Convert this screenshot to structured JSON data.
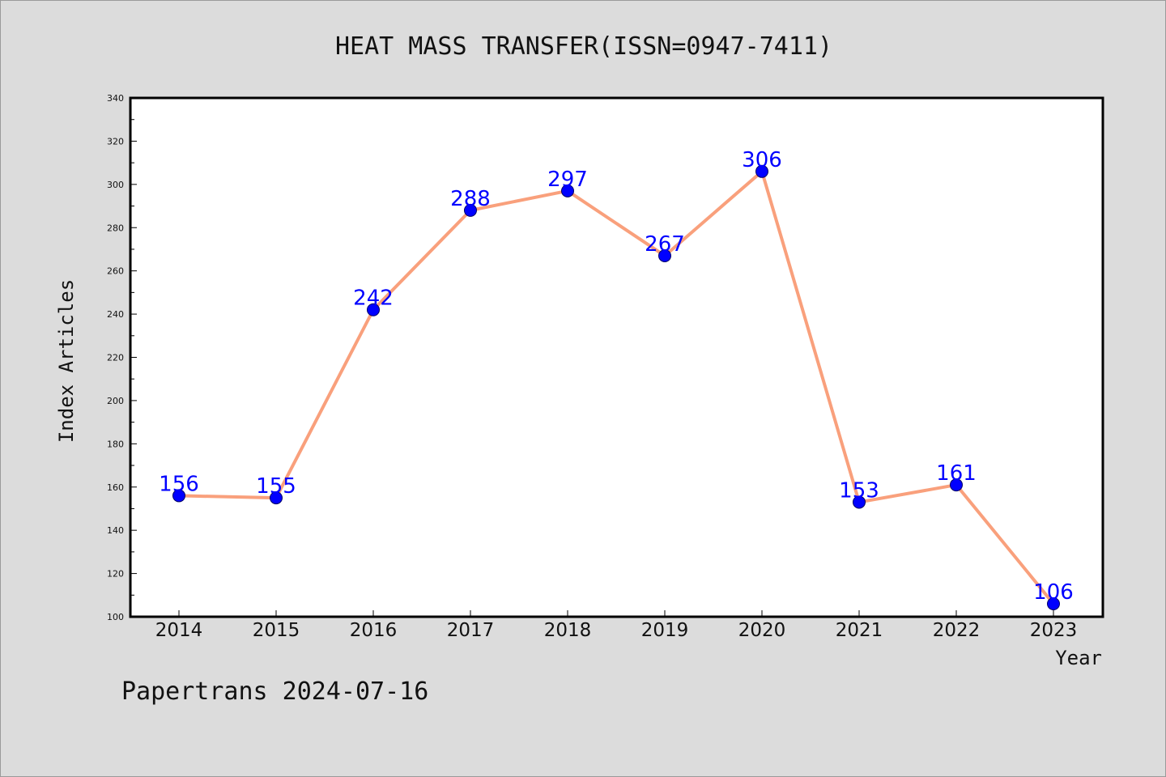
{
  "chart_data": {
    "type": "line",
    "title": "HEAT MASS TRANSFER(ISSN=0947-7411)",
    "xlabel": "Year",
    "ylabel": "Index Articles",
    "x": [
      "2014",
      "2015",
      "2016",
      "2017",
      "2018",
      "2019",
      "2020",
      "2021",
      "2022",
      "2023"
    ],
    "series": [
      {
        "values": [
          156,
          155,
          242,
          288,
          297,
          267,
          306,
          153,
          161,
          106
        ]
      }
    ],
    "data_labels": [
      "156",
      "155",
      "242",
      "288",
      "297",
      "267",
      "306",
      "153",
      "161",
      "106"
    ],
    "ylim": [
      100,
      340
    ],
    "y_ticks": [
      "100",
      "120",
      "140",
      "160",
      "180",
      "200",
      "220",
      "240",
      "260",
      "280",
      "300",
      "320",
      "340"
    ],
    "grid": false,
    "legend": "none",
    "colors": {
      "line": "#f9a07c",
      "marker": "#0000ff",
      "label": "#0000ff",
      "plot_background": "#ffffff",
      "page_background": "#dcdcdc"
    }
  },
  "footer": {
    "text": "Papertrans 2024-07-16"
  }
}
